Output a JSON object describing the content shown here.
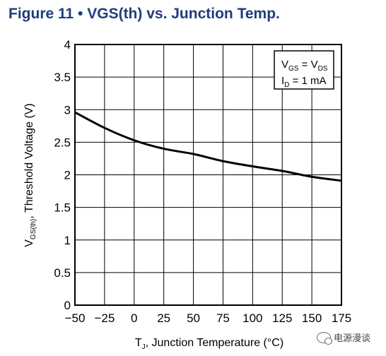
{
  "figure": {
    "title": "Figure 11 • VGS(th) vs. Junction Temp."
  },
  "legend": {
    "line1_main_a": "V",
    "line1_sub_a": "GS",
    "line1_eq": " = V",
    "line1_sub_b": "DS",
    "line2_main": "I",
    "line2_sub": "D",
    "line2_rest": " = 1 mA"
  },
  "axes": {
    "y_main": "V",
    "y_sub": "GS(th)",
    "y_rest": ", Threshold Voltage (V)",
    "x_main": "T",
    "x_sub": "J",
    "x_rest": ", Junction Temperature (°C)"
  },
  "watermark": {
    "text": "电源漫谈"
  },
  "chart_data": {
    "type": "line",
    "title": "Figure 11 • VGS(th) vs. Junction Temp.",
    "xlabel": "TJ, Junction Temperature (°C)",
    "ylabel": "VGS(th), Threshold Voltage (V)",
    "xlim": [
      -50,
      175
    ],
    "ylim": [
      0,
      4
    ],
    "x_ticks": [
      -50,
      -25,
      0,
      25,
      50,
      75,
      100,
      125,
      150,
      175
    ],
    "y_ticks": [
      0,
      0.5,
      1,
      1.5,
      2,
      2.5,
      3,
      3.5,
      4
    ],
    "y_tick_labels": [
      "0",
      "0.5",
      "1",
      "1.5",
      "2",
      "2.5",
      "3",
      "3.5",
      "4"
    ],
    "grid": true,
    "legend_position": "top-right",
    "series": [
      {
        "x": [
          -50,
          -25,
          0,
          25,
          50,
          75,
          100,
          125,
          150,
          175
        ],
        "y": [
          2.96,
          2.72,
          2.53,
          2.4,
          2.32,
          2.21,
          2.13,
          2.06,
          1.97,
          1.91
        ]
      }
    ]
  }
}
